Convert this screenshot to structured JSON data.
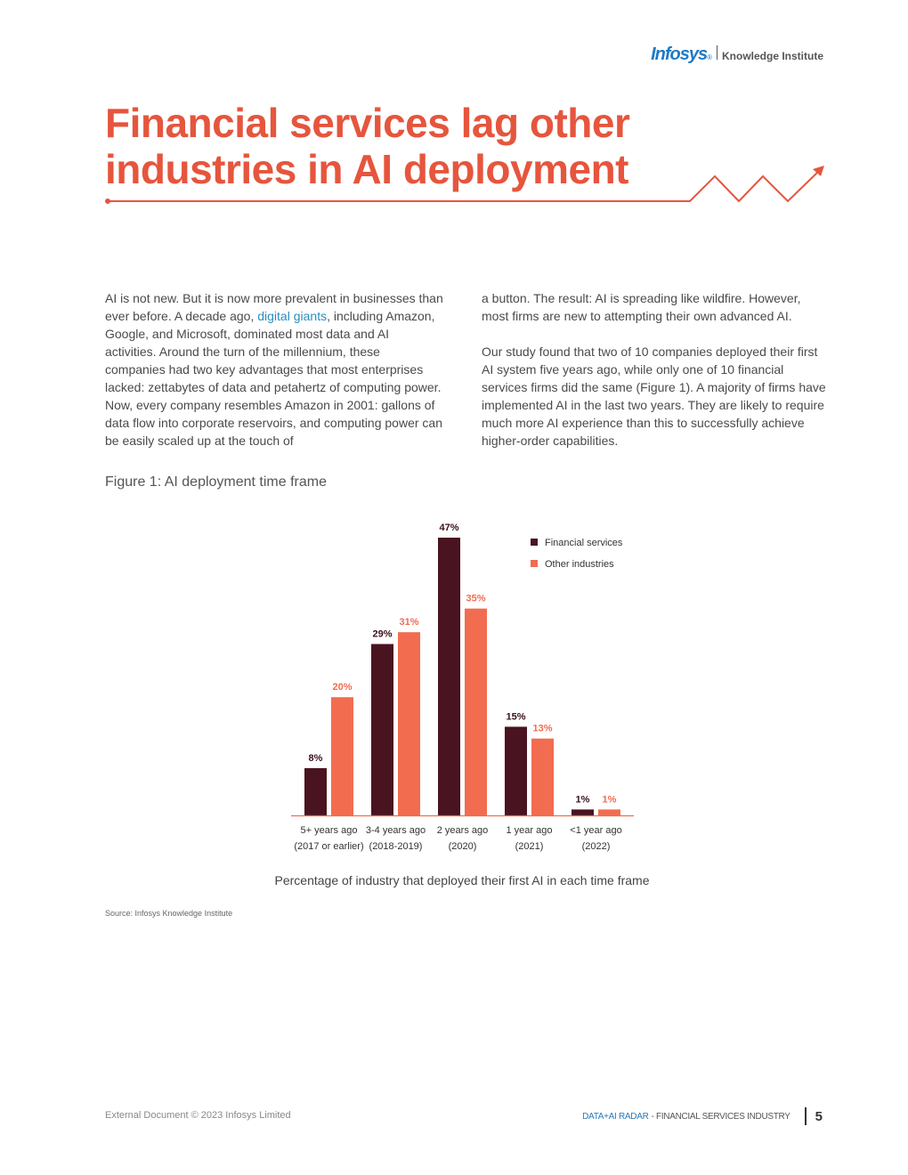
{
  "header": {
    "brand": "Infosys",
    "brand_reg": "®",
    "institute": "Knowledge Institute"
  },
  "title": {
    "line1": "Financial services lag other",
    "line2": "industries in AI deployment"
  },
  "body": {
    "left_p1_a": "AI is not new. But it is now more prevalent in businesses than ever before. A decade ago, ",
    "left_p1_link": "digital giants",
    "left_p1_b": ", including Amazon, Google, and Microsoft, dominated most data and AI activities. Around the turn of the millennium, these companies had two key advantages that most enterprises lacked: zettabytes of data and petahertz of computing power. Now, every company resembles Amazon in 2001: gallons of data flow into corporate reservoirs, and computing power can be easily scaled up at the touch of",
    "right_p1": "a button. The result: AI is spreading like wildfire. However, most firms are new to attempting their own advanced AI.",
    "right_p2": "Our study found that two of 10 companies deployed their first AI system five years ago, while only one of 10 financial services firms did the same (Figure 1). A majority of firms have implemented AI in the last two years. They are likely to require much more AI experience than this to successfully achieve higher-order capabilities."
  },
  "figure": {
    "title": "Figure 1: AI deployment time frame",
    "source": "Source: Infosys Knowledge Institute"
  },
  "chart_data": {
    "type": "bar",
    "categories": [
      [
        "5+ years ago",
        "(2017 or earlier)"
      ],
      [
        "3-4 years ago",
        "(2018-2019)"
      ],
      [
        "2 years ago",
        "(2020)"
      ],
      [
        "1 year ago",
        "(2021)"
      ],
      [
        "<1 year ago",
        "(2022)"
      ]
    ],
    "series": [
      {
        "name": "Financial services",
        "color": "#4a1320",
        "values": [
          8,
          29,
          47,
          15,
          1
        ],
        "labels": [
          "8%",
          "29%",
          "47%",
          "15%",
          "1%"
        ]
      },
      {
        "name": "Other industries",
        "color": "#f26c50",
        "values": [
          20,
          31,
          35,
          13,
          1
        ],
        "labels": [
          "20%",
          "31%",
          "35%",
          "13%",
          "1%"
        ]
      }
    ],
    "xlabel": "Percentage of industry that deployed their first AI in each time frame",
    "ylabel": "",
    "ylim": [
      0,
      47
    ],
    "legend": "top-right",
    "grid": false
  },
  "footer": {
    "left": "External Document © 2023 Infosys Limited",
    "report": "DATA+AI RADAR",
    "industry": " - FINANCIAL SERVICES INDUSTRY",
    "page": "5"
  },
  "colors": {
    "accent": "#e6553d",
    "brand": "#1f7ac4",
    "link": "#2a8fbf"
  }
}
